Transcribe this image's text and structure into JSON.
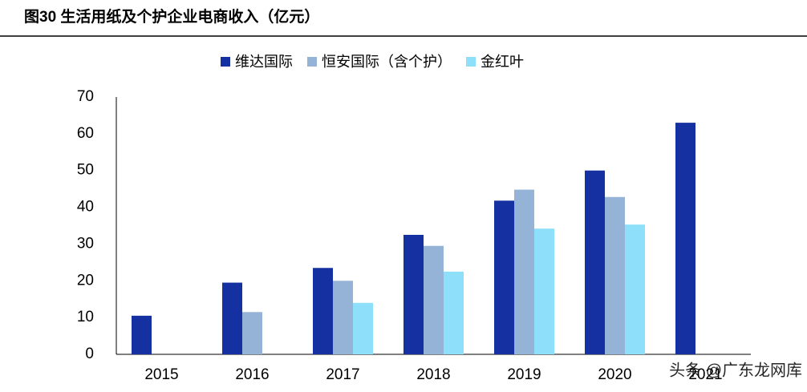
{
  "chart_data": {
    "type": "bar",
    "title": "图30 生活用纸及个护企业电商收入（亿元）",
    "categories": [
      "2015",
      "2016",
      "2017",
      "2018",
      "2019",
      "2020",
      "2021"
    ],
    "series": [
      {
        "name": "维达国际",
        "color": "#1530a0",
        "values": [
          10.5,
          19.5,
          23.5,
          32.5,
          41.8,
          50,
          63
        ]
      },
      {
        "name": "恒安国际（含个护）",
        "color": "#95b3d7",
        "values": [
          null,
          11.5,
          20,
          29.5,
          44.8,
          42.8,
          null
        ]
      },
      {
        "name": "金红叶",
        "color": "#8ee0fa",
        "values": [
          null,
          null,
          14,
          22.5,
          34.2,
          35.3,
          null
        ]
      }
    ],
    "ylim": [
      0,
      70
    ],
    "yticks": [
      0,
      10,
      20,
      30,
      40,
      50,
      60,
      70
    ],
    "grid": false,
    "watermark": "头条 @广东龙网库"
  }
}
